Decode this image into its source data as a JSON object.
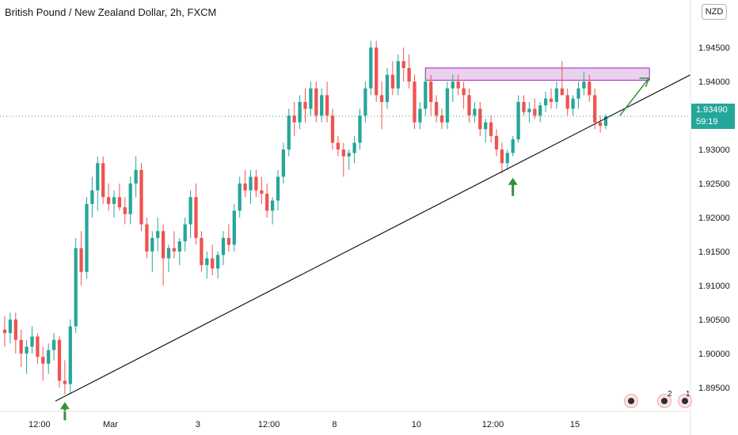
{
  "header": {
    "title": "British Pound / New Zealand Dollar, 2h, FXCM",
    "currency": "NZD"
  },
  "price_tag": {
    "price": "1.93490",
    "countdown": "59:19"
  },
  "event_markers": [
    {
      "icon": "event-flag-icon",
      "count": ""
    },
    {
      "icon": "event-flag-icon",
      "count": "2"
    },
    {
      "icon": "event-flag-icon",
      "count": "1"
    }
  ],
  "colors": {
    "up": "#26a69a",
    "down": "#ef5350",
    "trendline": "#131722",
    "zone_fill": "#e1bee7",
    "zone_border": "#9c27b0",
    "arrow": "#388e3c"
  },
  "chart_data": {
    "type": "candlestick",
    "title": "British Pound / New Zealand Dollar, 2h, FXCM",
    "ylim": [
      1.8915,
      1.952
    ],
    "yticks": [
      "1.89500",
      "1.90000",
      "1.90500",
      "1.91000",
      "1.91500",
      "1.92000",
      "1.92500",
      "1.93000",
      "1.93500",
      "1.94000",
      "1.94500"
    ],
    "xticks": [
      "12:00",
      "Mar",
      "3",
      "12:00",
      "8",
      "10",
      "12:00",
      "15"
    ],
    "last_price": 1.9349,
    "candles": [
      [
        1.9035,
        1.9055,
        1.901,
        1.903
      ],
      [
        1.903,
        1.906,
        1.9015,
        1.905
      ],
      [
        1.905,
        1.906,
        1.9,
        1.902
      ],
      [
        1.902,
        1.9035,
        1.898,
        1.9
      ],
      [
        1.9,
        1.902,
        1.897,
        1.901
      ],
      [
        1.901,
        1.904,
        1.9,
        1.9025
      ],
      [
        1.9025,
        1.903,
        1.8985,
        1.8995
      ],
      [
        1.8995,
        1.901,
        1.896,
        1.8985
      ],
      [
        1.8985,
        1.9015,
        1.897,
        1.9005
      ],
      [
        1.9005,
        1.903,
        1.899,
        1.902
      ],
      [
        1.902,
        1.9025,
        1.895,
        1.896
      ],
      [
        1.896,
        1.899,
        1.894,
        1.8955
      ],
      [
        1.8955,
        1.905,
        1.894,
        1.904
      ],
      [
        1.904,
        1.917,
        1.903,
        1.9155
      ],
      [
        1.9155,
        1.918,
        1.91,
        1.912
      ],
      [
        1.912,
        1.923,
        1.911,
        1.922
      ],
      [
        1.922,
        1.926,
        1.92,
        1.924
      ],
      [
        1.924,
        1.929,
        1.921,
        1.928
      ],
      [
        1.928,
        1.929,
        1.922,
        1.923
      ],
      [
        1.923,
        1.925,
        1.921,
        1.922
      ],
      [
        1.922,
        1.924,
        1.92,
        1.923
      ],
      [
        1.923,
        1.925,
        1.921,
        1.9215
      ],
      [
        1.9215,
        1.923,
        1.919,
        1.9205
      ],
      [
        1.9205,
        1.926,
        1.919,
        1.925
      ],
      [
        1.925,
        1.929,
        1.923,
        1.927
      ],
      [
        1.927,
        1.928,
        1.918,
        1.919
      ],
      [
        1.919,
        1.92,
        1.914,
        1.915
      ],
      [
        1.915,
        1.918,
        1.912,
        1.917
      ],
      [
        1.917,
        1.92,
        1.915,
        1.918
      ],
      [
        1.918,
        1.919,
        1.91,
        1.914
      ],
      [
        1.914,
        1.916,
        1.912,
        1.9155
      ],
      [
        1.9155,
        1.918,
        1.914,
        1.915
      ],
      [
        1.915,
        1.917,
        1.913,
        1.9165
      ],
      [
        1.9165,
        1.92,
        1.915,
        1.919
      ],
      [
        1.919,
        1.924,
        1.917,
        1.923
      ],
      [
        1.923,
        1.925,
        1.916,
        1.917
      ],
      [
        1.917,
        1.918,
        1.912,
        1.913
      ],
      [
        1.913,
        1.915,
        1.911,
        1.914
      ],
      [
        1.914,
        1.916,
        1.9115,
        1.9125
      ],
      [
        1.9125,
        1.915,
        1.911,
        1.9145
      ],
      [
        1.9145,
        1.918,
        1.913,
        1.917
      ],
      [
        1.917,
        1.919,
        1.915,
        1.916
      ],
      [
        1.916,
        1.922,
        1.915,
        1.921
      ],
      [
        1.921,
        1.926,
        1.92,
        1.925
      ],
      [
        1.925,
        1.927,
        1.923,
        1.924
      ],
      [
        1.924,
        1.927,
        1.922,
        1.926
      ],
      [
        1.926,
        1.927,
        1.923,
        1.924
      ],
      [
        1.924,
        1.926,
        1.922,
        1.9235
      ],
      [
        1.9235,
        1.925,
        1.92,
        1.921
      ],
      [
        1.921,
        1.923,
        1.919,
        1.9225
      ],
      [
        1.9225,
        1.927,
        1.921,
        1.926
      ],
      [
        1.926,
        1.931,
        1.925,
        1.93
      ],
      [
        1.93,
        1.936,
        1.929,
        1.935
      ],
      [
        1.935,
        1.937,
        1.932,
        1.934
      ],
      [
        1.934,
        1.938,
        1.933,
        1.937
      ],
      [
        1.937,
        1.939,
        1.934,
        1.936
      ],
      [
        1.936,
        1.94,
        1.935,
        1.939
      ],
      [
        1.939,
        1.94,
        1.934,
        1.935
      ],
      [
        1.935,
        1.939,
        1.934,
        1.938
      ],
      [
        1.938,
        1.94,
        1.934,
        1.935
      ],
      [
        1.935,
        1.936,
        1.93,
        1.931
      ],
      [
        1.931,
        1.932,
        1.929,
        1.93
      ],
      [
        1.93,
        1.931,
        1.926,
        1.929
      ],
      [
        1.929,
        1.93,
        1.927,
        1.9295
      ],
      [
        1.9295,
        1.932,
        1.928,
        1.931
      ],
      [
        1.931,
        1.936,
        1.93,
        1.935
      ],
      [
        1.935,
        1.94,
        1.934,
        1.939
      ],
      [
        1.939,
        1.946,
        1.938,
        1.945
      ],
      [
        1.945,
        1.946,
        1.937,
        1.938
      ],
      [
        1.938,
        1.94,
        1.933,
        1.937
      ],
      [
        1.937,
        1.942,
        1.936,
        1.941
      ],
      [
        1.941,
        1.943,
        1.938,
        1.939
      ],
      [
        1.939,
        1.944,
        1.938,
        1.943
      ],
      [
        1.943,
        1.945,
        1.94,
        1.942
      ],
      [
        1.942,
        1.944,
        1.939,
        1.94
      ],
      [
        1.94,
        1.941,
        1.933,
        1.934
      ],
      [
        1.934,
        1.937,
        1.933,
        1.936
      ],
      [
        1.936,
        1.941,
        1.935,
        1.94
      ],
      [
        1.94,
        1.941,
        1.935,
        1.937
      ],
      [
        1.937,
        1.938,
        1.934,
        1.935
      ],
      [
        1.935,
        1.936,
        1.933,
        1.934
      ],
      [
        1.934,
        1.94,
        1.933,
        1.939
      ],
      [
        1.939,
        1.941,
        1.937,
        1.94
      ],
      [
        1.94,
        1.941,
        1.938,
        1.939
      ],
      [
        1.939,
        1.94,
        1.936,
        1.938
      ],
      [
        1.938,
        1.939,
        1.934,
        1.935
      ],
      [
        1.935,
        1.937,
        1.934,
        1.936
      ],
      [
        1.936,
        1.937,
        1.932,
        1.933
      ],
      [
        1.933,
        1.9345,
        1.931,
        1.934
      ],
      [
        1.934,
        1.935,
        1.931,
        1.932
      ],
      [
        1.932,
        1.933,
        1.929,
        1.93
      ],
      [
        1.93,
        1.931,
        1.9265,
        1.928
      ],
      [
        1.928,
        1.93,
        1.927,
        1.9295
      ],
      [
        1.9295,
        1.932,
        1.929,
        1.9315
      ],
      [
        1.9315,
        1.938,
        1.931,
        1.937
      ],
      [
        1.937,
        1.938,
        1.935,
        1.9355
      ],
      [
        1.9355,
        1.937,
        1.934,
        1.936
      ],
      [
        1.936,
        1.9375,
        1.9345,
        1.935
      ],
      [
        1.935,
        1.937,
        1.934,
        1.9365
      ],
      [
        1.9365,
        1.9385,
        1.9355,
        1.9375
      ],
      [
        1.9375,
        1.939,
        1.936,
        1.937
      ],
      [
        1.937,
        1.94,
        1.936,
        1.939
      ],
      [
        1.939,
        1.943,
        1.938,
        1.938
      ],
      [
        1.938,
        1.939,
        1.935,
        1.936
      ],
      [
        1.936,
        1.938,
        1.935,
        1.9375
      ],
      [
        1.9375,
        1.94,
        1.936,
        1.939
      ],
      [
        1.939,
        1.9415,
        1.938,
        1.94
      ],
      [
        1.94,
        1.941,
        1.937,
        1.938
      ],
      [
        1.938,
        1.939,
        1.933,
        1.934
      ],
      [
        1.934,
        1.935,
        1.9325,
        1.9335
      ],
      [
        1.9335,
        1.9352,
        1.933,
        1.9349
      ]
    ]
  },
  "annotations": {
    "trendline": {
      "from": [
        0,
        1.893
      ],
      "to": [
        128,
        1.941
      ]
    },
    "resistance_zone": {
      "from": 77,
      "to": 118,
      "top": 1.942,
      "bottom": 1.9402
    },
    "projection_arrow": {
      "from": [
        112,
        1.935
      ],
      "to": [
        115,
        1.9405
      ]
    },
    "up_arrows": [
      {
        "at": 11,
        "price": 1.8925
      },
      {
        "at": 93,
        "price": 1.9255
      }
    ]
  }
}
